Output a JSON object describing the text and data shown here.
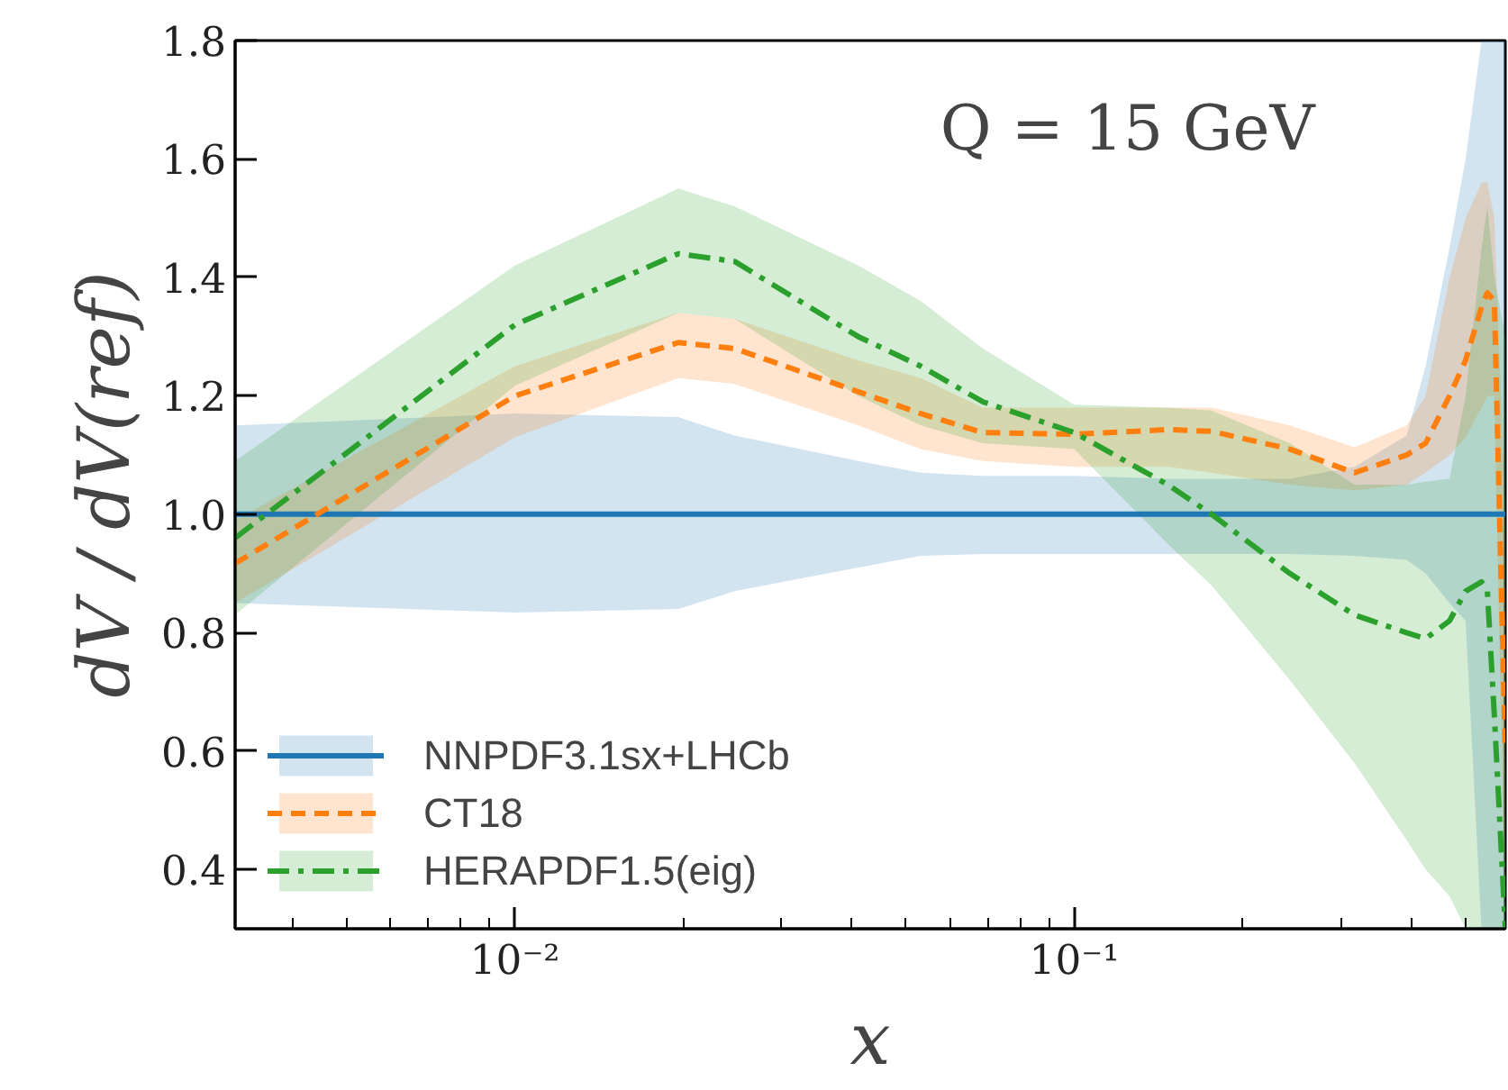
{
  "chart_data": {
    "type": "line",
    "xlabel": "x",
    "ylabel": "dV / dV(ref)",
    "annotations": [
      "Q = 15 GeV"
    ],
    "log": "x",
    "grid": false,
    "legend": "bottom left",
    "marker": "none",
    "xlim": [
      0.00316,
      0.59
    ],
    "ylim": [
      0.3,
      1.8
    ],
    "xticks": [
      {
        "value": 0.01,
        "label": "10⁻²"
      },
      {
        "value": 0.1,
        "label": "10⁻¹"
      }
    ],
    "yticks": [
      {
        "value": 0.4,
        "label": "0.4"
      },
      {
        "value": 0.6,
        "label": "0.6"
      },
      {
        "value": 0.8,
        "label": "0.8"
      },
      {
        "value": 1.0,
        "label": "1.0"
      },
      {
        "value": 1.2,
        "label": "1.2"
      },
      {
        "value": 1.4,
        "label": "1.4"
      },
      {
        "value": 1.6,
        "label": "1.6"
      },
      {
        "value": 1.8,
        "label": "1.8"
      }
    ],
    "x": [
      0.00316,
      0.01,
      0.0196,
      0.0247,
      0.0411,
      0.0532,
      0.0686,
      0.1,
      0.147,
      0.176,
      0.243,
      0.317,
      0.393,
      0.425,
      0.469,
      0.501,
      0.535,
      0.548,
      0.564,
      0.59
    ],
    "series": [
      {
        "name": "NNPDF3.1sx+LHCb",
        "color": "#1f77b4",
        "line_style": "solid",
        "values": [
          1.0,
          1.0,
          1.0,
          1.0,
          1.0,
          1.0,
          1.0,
          1.0,
          1.0,
          1.0,
          1.0,
          1.0,
          1.0,
          1.0,
          1.0,
          1.0,
          1.0,
          1.0,
          1.0,
          1.0
        ],
        "lower": [
          0.85,
          0.834,
          0.84,
          0.87,
          0.91,
          0.93,
          0.933,
          0.933,
          0.933,
          0.933,
          0.933,
          0.93,
          0.923,
          0.9,
          0.85,
          0.82,
          0.3,
          0.3,
          0.3,
          0.3
        ],
        "upper": [
          1.15,
          1.17,
          1.164,
          1.133,
          1.09,
          1.07,
          1.065,
          1.065,
          1.06,
          1.06,
          1.06,
          1.08,
          1.133,
          1.25,
          1.45,
          1.6,
          1.8,
          1.8,
          1.8,
          1.8
        ]
      },
      {
        "name": "CT18",
        "color": "#ff7f0e",
        "line_style": "dashed",
        "values": [
          0.917,
          1.2,
          1.29,
          1.28,
          1.207,
          1.17,
          1.138,
          1.135,
          1.143,
          1.14,
          1.11,
          1.07,
          1.1,
          1.12,
          1.2,
          1.26,
          1.35,
          1.374,
          1.36,
          0.6
        ],
        "lower": [
          0.85,
          1.13,
          1.23,
          1.22,
          1.15,
          1.11,
          1.09,
          1.08,
          1.08,
          1.07,
          1.05,
          1.04,
          1.05,
          1.07,
          1.1,
          1.13,
          1.18,
          1.2,
          1.2,
          0.3
        ],
        "upper": [
          0.99,
          1.25,
          1.34,
          1.33,
          1.26,
          1.23,
          1.18,
          1.18,
          1.18,
          1.18,
          1.15,
          1.113,
          1.15,
          1.2,
          1.4,
          1.5,
          1.56,
          1.56,
          1.5,
          1.0
        ]
      },
      {
        "name": "HERAPDF1.5(eig)",
        "color": "#2ca02c",
        "line_style": "dashdot",
        "values": [
          0.96,
          1.32,
          1.44,
          1.427,
          1.3,
          1.25,
          1.19,
          1.138,
          1.05,
          1.0,
          0.9,
          0.83,
          0.8,
          0.79,
          0.82,
          0.87,
          0.886,
          0.87,
          0.66,
          0.3
        ],
        "lower": [
          0.83,
          1.217,
          1.34,
          1.33,
          1.2,
          1.15,
          1.12,
          1.11,
          0.95,
          0.88,
          0.72,
          0.58,
          0.45,
          0.4,
          0.355,
          0.3,
          0.3,
          0.3,
          0.3,
          0.3
        ],
        "upper": [
          1.09,
          1.42,
          1.55,
          1.52,
          1.42,
          1.36,
          1.28,
          1.185,
          1.18,
          1.175,
          1.12,
          1.05,
          1.05,
          1.055,
          1.06,
          1.2,
          1.45,
          1.52,
          1.4,
          1.3
        ]
      }
    ]
  }
}
